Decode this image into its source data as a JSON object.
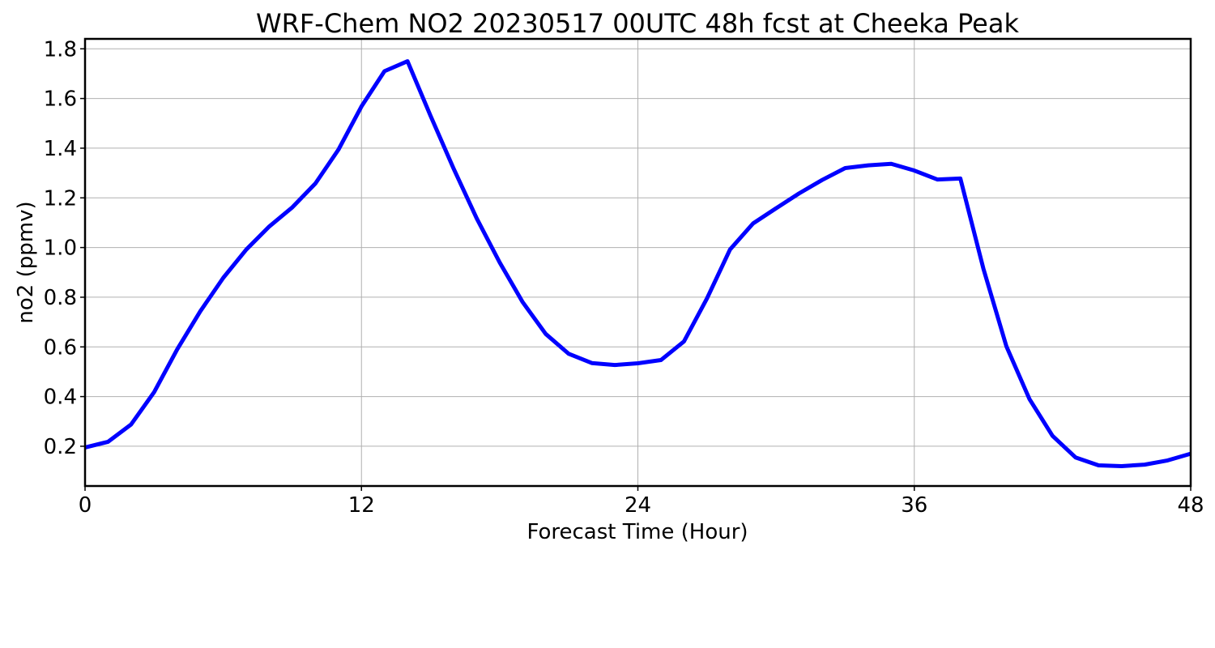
{
  "chart_data": {
    "type": "line",
    "title": "WRF-Chem NO2  20230517 00UTC 48h fcst at Cheeka Peak",
    "xlabel": "Forecast Time (Hour)",
    "ylabel": "no2  (ppmv)",
    "xlim": [
      0,
      48
    ],
    "ylim": [
      0.04,
      1.84
    ],
    "xticks": [
      0,
      12,
      24,
      36,
      48
    ],
    "yticks": [
      0.2,
      0.4,
      0.6,
      0.8,
      1.0,
      1.2,
      1.4,
      1.6,
      1.8
    ],
    "ytick_labels": [
      "0.2",
      "0.4",
      "0.6",
      "0.8",
      "1.0",
      "1.2",
      "1.4",
      "1.6",
      "1.8"
    ],
    "grid": true,
    "series": [
      {
        "color": "#0000ff",
        "x": [
          0,
          1,
          2,
          3,
          4,
          5,
          6,
          7,
          8,
          9,
          10,
          11,
          12,
          13,
          14,
          15,
          16,
          17,
          18,
          19,
          20,
          21,
          22,
          23,
          24,
          25,
          26,
          27,
          28,
          29,
          30,
          31,
          32,
          33,
          34,
          35,
          36,
          37,
          38,
          39,
          40,
          41,
          42,
          43,
          44,
          45,
          46,
          47,
          48
        ],
        "y": [
          0.195,
          0.218,
          0.288,
          0.418,
          0.59,
          0.743,
          0.878,
          0.992,
          1.085,
          1.162,
          1.258,
          1.394,
          1.568,
          1.71,
          1.75,
          1.53,
          1.318,
          1.118,
          0.94,
          0.78,
          0.652,
          0.572,
          0.535,
          0.527,
          0.534,
          0.547,
          0.622,
          0.795,
          0.992,
          1.097,
          1.158,
          1.218,
          1.272,
          1.32,
          1.331,
          1.337,
          1.31,
          1.274,
          1.278,
          0.915,
          0.602,
          0.39,
          0.242,
          0.155,
          0.123,
          0.12,
          0.126,
          0.143,
          0.17
        ]
      }
    ]
  }
}
